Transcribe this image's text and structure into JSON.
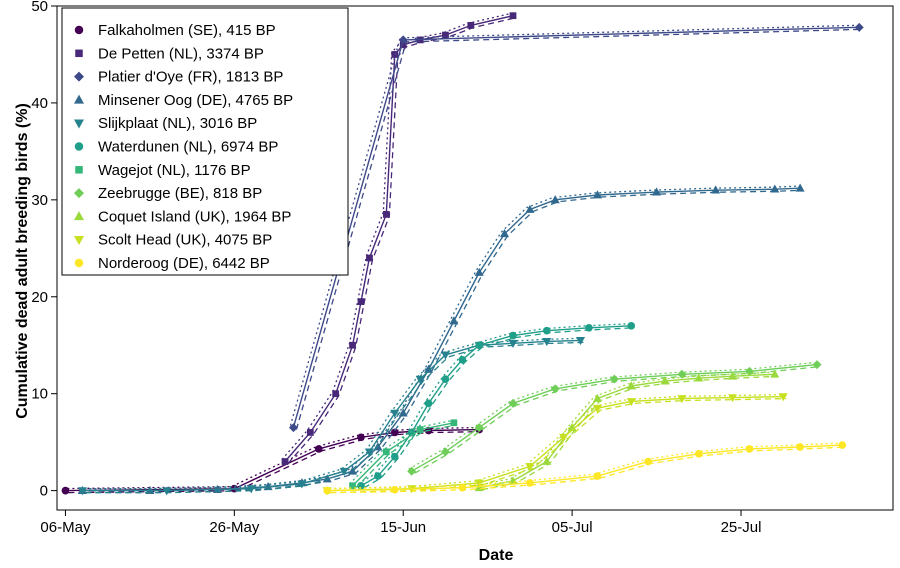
{
  "chart_data": {
    "type": "scatter",
    "xlabel": "Date",
    "ylabel": "Cumulative dead adult breeding birds (%)",
    "x_ticks": [
      "06-May",
      "26-May",
      "15-Jun",
      "05-Jul",
      "25-Jul"
    ],
    "x_tick_dates": [
      "2022-05-06",
      "2022-05-26",
      "2022-06-15",
      "2022-07-05",
      "2022-07-25"
    ],
    "y_ticks": [
      "0",
      "10",
      "20",
      "30",
      "40",
      "50"
    ],
    "xlim": [
      "2022-05-05",
      "2022-08-12"
    ],
    "ylim": [
      -2,
      50
    ],
    "grid": false,
    "legend_position": "top-left",
    "series": [
      {
        "name": "Falkaholmen (SE), 415 BP",
        "marker": "circle",
        "color": "#440154",
        "points": [
          [
            "2022-05-06",
            0
          ],
          [
            "2022-05-26",
            0.2
          ],
          [
            "2022-06-05",
            4.3
          ],
          [
            "2022-06-10",
            5.5
          ],
          [
            "2022-06-14",
            6.0
          ],
          [
            "2022-06-18",
            6.2
          ],
          [
            "2022-06-24",
            6.3
          ]
        ]
      },
      {
        "name": "De Petten (NL), 3374 BP",
        "marker": "square",
        "color": "#482878",
        "points": [
          [
            "2022-06-01",
            3
          ],
          [
            "2022-06-04",
            6
          ],
          [
            "2022-06-07",
            10
          ],
          [
            "2022-06-09",
            15
          ],
          [
            "2022-06-10",
            19.5
          ],
          [
            "2022-06-11",
            24
          ],
          [
            "2022-06-13",
            28.5
          ],
          [
            "2022-06-14",
            45
          ],
          [
            "2022-06-15",
            46
          ],
          [
            "2022-06-17",
            46.5
          ],
          [
            "2022-06-20",
            47
          ],
          [
            "2022-06-23",
            48
          ],
          [
            "2022-06-28",
            49
          ]
        ]
      },
      {
        "name": "Platier d'Oye (FR), 1813 BP",
        "marker": "diamond",
        "color": "#3e4989",
        "points": [
          [
            "2022-06-02",
            6.5
          ],
          [
            "2022-06-15",
            46.5
          ],
          [
            "2022-08-08",
            47.8
          ]
        ]
      },
      {
        "name": "Minsener Oog (DE), 4765 BP",
        "marker": "triangle-up",
        "color": "#31688e",
        "points": [
          [
            "2022-05-08",
            0
          ],
          [
            "2022-05-16",
            0
          ],
          [
            "2022-05-24",
            0.1
          ],
          [
            "2022-05-30",
            0.4
          ],
          [
            "2022-06-03",
            0.8
          ],
          [
            "2022-06-06",
            1.2
          ],
          [
            "2022-06-09",
            2.0
          ],
          [
            "2022-06-12",
            4.5
          ],
          [
            "2022-06-15",
            8.0
          ],
          [
            "2022-06-18",
            12.5
          ],
          [
            "2022-06-21",
            17.5
          ],
          [
            "2022-06-24",
            22.5
          ],
          [
            "2022-06-27",
            26.5
          ],
          [
            "2022-06-30",
            29.0
          ],
          [
            "2022-07-03",
            30.0
          ],
          [
            "2022-07-08",
            30.5
          ],
          [
            "2022-07-15",
            30.8
          ],
          [
            "2022-07-22",
            31.0
          ],
          [
            "2022-07-29",
            31.1
          ],
          [
            "2022-08-01",
            31.2
          ]
        ]
      },
      {
        "name": "Slijkplaat (NL), 3016 BP",
        "marker": "triangle-down",
        "color": "#26828e",
        "points": [
          [
            "2022-05-08",
            0
          ],
          [
            "2022-05-18",
            0
          ],
          [
            "2022-05-28",
            0.2
          ],
          [
            "2022-06-03",
            0.7
          ],
          [
            "2022-06-08",
            2.0
          ],
          [
            "2022-06-11",
            4.0
          ],
          [
            "2022-06-14",
            8.0
          ],
          [
            "2022-06-17",
            11.5
          ],
          [
            "2022-06-20",
            14.0
          ],
          [
            "2022-06-24",
            15.0
          ],
          [
            "2022-06-28",
            15.2
          ],
          [
            "2022-07-02",
            15.4
          ],
          [
            "2022-07-06",
            15.5
          ]
        ]
      },
      {
        "name": "Waterdunen (NL), 6974 BP",
        "marker": "circle",
        "color": "#1f9e89",
        "points": [
          [
            "2022-06-10",
            0.5
          ],
          [
            "2022-06-12",
            1.5
          ],
          [
            "2022-06-14",
            3.5
          ],
          [
            "2022-06-16",
            6.0
          ],
          [
            "2022-06-18",
            9.0
          ],
          [
            "2022-06-20",
            11.5
          ],
          [
            "2022-06-22",
            13.5
          ],
          [
            "2022-06-24",
            15.0
          ],
          [
            "2022-06-28",
            16.0
          ],
          [
            "2022-07-02",
            16.5
          ],
          [
            "2022-07-07",
            16.8
          ],
          [
            "2022-07-12",
            17.0
          ]
        ]
      },
      {
        "name": "Wagejot (NL), 1176 BP",
        "marker": "square",
        "color": "#35b779",
        "points": [
          [
            "2022-06-09",
            0.5
          ],
          [
            "2022-06-13",
            4.0
          ],
          [
            "2022-06-17",
            6.3
          ],
          [
            "2022-06-21",
            7.0
          ]
        ]
      },
      {
        "name": "Zeebrugge (BE), 818 BP",
        "marker": "diamond",
        "color": "#6ece58",
        "points": [
          [
            "2022-06-16",
            2.0
          ],
          [
            "2022-06-20",
            4.0
          ],
          [
            "2022-06-24",
            6.5
          ],
          [
            "2022-06-28",
            9.0
          ],
          [
            "2022-07-03",
            10.5
          ],
          [
            "2022-07-10",
            11.5
          ],
          [
            "2022-07-18",
            12.0
          ],
          [
            "2022-07-26",
            12.3
          ],
          [
            "2022-08-03",
            13.0
          ]
        ]
      },
      {
        "name": "Coquet Island (UK), 1964 BP",
        "marker": "triangle-up",
        "color": "#9ad93c",
        "points": [
          [
            "2022-06-24",
            0.3
          ],
          [
            "2022-06-28",
            1.0
          ],
          [
            "2022-07-02",
            3.0
          ],
          [
            "2022-07-05",
            6.5
          ],
          [
            "2022-07-08",
            9.5
          ],
          [
            "2022-07-12",
            10.8
          ],
          [
            "2022-07-16",
            11.3
          ],
          [
            "2022-07-20",
            11.6
          ],
          [
            "2022-07-24",
            11.8
          ],
          [
            "2022-07-29",
            12.0
          ]
        ]
      },
      {
        "name": "Scolt Head (UK), 4075 BP",
        "marker": "triangle-down",
        "color": "#c7e020",
        "points": [
          [
            "2022-06-06",
            0
          ],
          [
            "2022-06-16",
            0.2
          ],
          [
            "2022-06-24",
            0.8
          ],
          [
            "2022-06-30",
            2.5
          ],
          [
            "2022-07-04",
            5.5
          ],
          [
            "2022-07-08",
            8.5
          ],
          [
            "2022-07-12",
            9.2
          ],
          [
            "2022-07-18",
            9.5
          ],
          [
            "2022-07-24",
            9.6
          ],
          [
            "2022-07-30",
            9.7
          ]
        ]
      },
      {
        "name": "Norderoog (DE), 6442 BP",
        "marker": "circle",
        "color": "#fde725",
        "points": [
          [
            "2022-06-06",
            0
          ],
          [
            "2022-06-14",
            0.1
          ],
          [
            "2022-06-22",
            0.3
          ],
          [
            "2022-06-30",
            0.8
          ],
          [
            "2022-07-08",
            1.5
          ],
          [
            "2022-07-14",
            3.0
          ],
          [
            "2022-07-20",
            3.8
          ],
          [
            "2022-07-26",
            4.3
          ],
          [
            "2022-08-01",
            4.5
          ],
          [
            "2022-08-06",
            4.7
          ]
        ]
      }
    ]
  }
}
